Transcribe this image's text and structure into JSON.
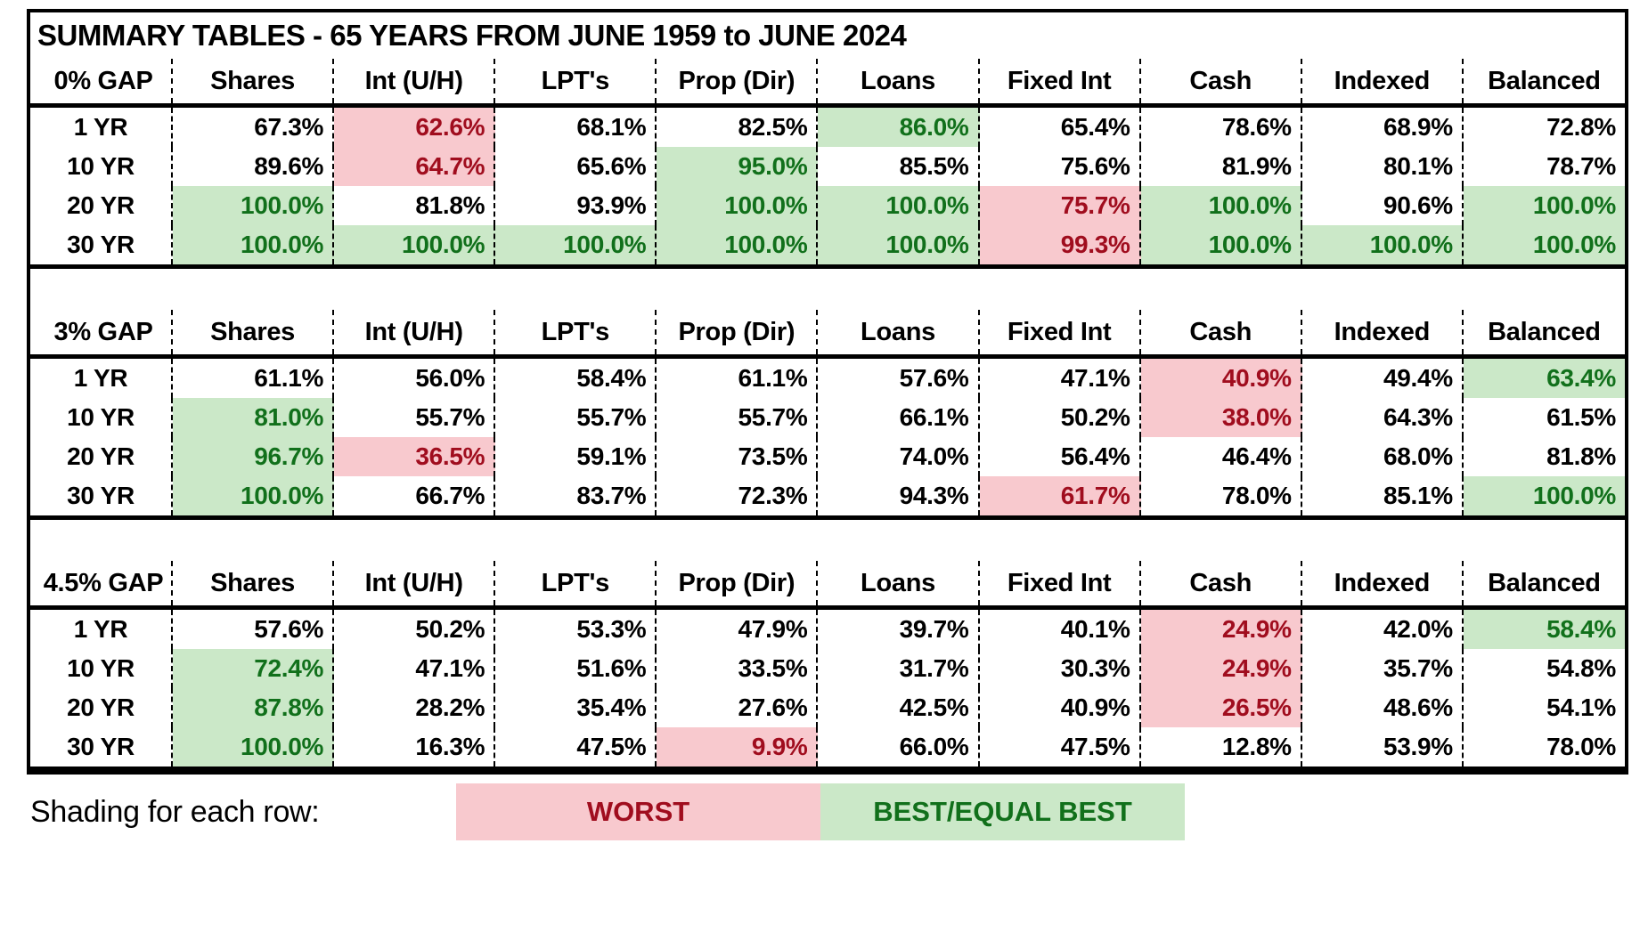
{
  "colors": {
    "worst_bg": "#F8C9CE",
    "worst_text": "#A00D1E",
    "best_bg": "#CBE8C8",
    "best_text": "#11701B"
  },
  "chart_data": {
    "type": "table",
    "title": "SUMMARY TABLES - 65 YEARS FROM JUNE 1959 to JUNE 2024",
    "shading_legend": {
      "label": "Shading for each row:",
      "worst": "WORST",
      "best": "BEST/EQUAL BEST"
    },
    "tables": [
      {
        "gap_label": "0% GAP",
        "columns": [
          "Shares",
          "Int (U/H)",
          "LPT's",
          "Prop (Dir)",
          "Loans",
          "Fixed Int",
          "Cash",
          "Indexed",
          "Balanced"
        ],
        "rows": [
          {
            "label": "1 YR",
            "values": [
              "67.3%",
              "62.6%",
              "68.1%",
              "82.5%",
              "86.0%",
              "65.4%",
              "78.6%",
              "68.9%",
              "72.8%"
            ],
            "shading": [
              "",
              "worst",
              "",
              "",
              "best",
              "",
              "",
              "",
              ""
            ]
          },
          {
            "label": "10 YR",
            "values": [
              "89.6%",
              "64.7%",
              "65.6%",
              "95.0%",
              "85.5%",
              "75.6%",
              "81.9%",
              "80.1%",
              "78.7%"
            ],
            "shading": [
              "",
              "worst",
              "",
              "best",
              "",
              "",
              "",
              "",
              ""
            ]
          },
          {
            "label": "20 YR",
            "values": [
              "100.0%",
              "81.8%",
              "93.9%",
              "100.0%",
              "100.0%",
              "75.7%",
              "100.0%",
              "90.6%",
              "100.0%"
            ],
            "shading": [
              "best",
              "",
              "",
              "best",
              "best",
              "worst",
              "best",
              "",
              "best"
            ]
          },
          {
            "label": "30 YR",
            "values": [
              "100.0%",
              "100.0%",
              "100.0%",
              "100.0%",
              "100.0%",
              "99.3%",
              "100.0%",
              "100.0%",
              "100.0%"
            ],
            "shading": [
              "best",
              "best",
              "best",
              "best",
              "best",
              "worst",
              "best",
              "best",
              "best"
            ]
          }
        ]
      },
      {
        "gap_label": "3% GAP",
        "columns": [
          "Shares",
          "Int (U/H)",
          "LPT's",
          "Prop (Dir)",
          "Loans",
          "Fixed Int",
          "Cash",
          "Indexed",
          "Balanced"
        ],
        "rows": [
          {
            "label": "1 YR",
            "values": [
              "61.1%",
              "56.0%",
              "58.4%",
              "61.1%",
              "57.6%",
              "47.1%",
              "40.9%",
              "49.4%",
              "63.4%"
            ],
            "shading": [
              "",
              "",
              "",
              "",
              "",
              "",
              "worst",
              "",
              "best"
            ]
          },
          {
            "label": "10 YR",
            "values": [
              "81.0%",
              "55.7%",
              "55.7%",
              "55.7%",
              "66.1%",
              "50.2%",
              "38.0%",
              "64.3%",
              "61.5%"
            ],
            "shading": [
              "best",
              "",
              "",
              "",
              "",
              "",
              "worst",
              "",
              ""
            ]
          },
          {
            "label": "20 YR",
            "values": [
              "96.7%",
              "36.5%",
              "59.1%",
              "73.5%",
              "74.0%",
              "56.4%",
              "46.4%",
              "68.0%",
              "81.8%"
            ],
            "shading": [
              "best",
              "worst",
              "",
              "",
              "",
              "",
              "",
              "",
              ""
            ]
          },
          {
            "label": "30 YR",
            "values": [
              "100.0%",
              "66.7%",
              "83.7%",
              "72.3%",
              "94.3%",
              "61.7%",
              "78.0%",
              "85.1%",
              "100.0%"
            ],
            "shading": [
              "best",
              "",
              "",
              "",
              "",
              "worst",
              "",
              "",
              "best"
            ]
          }
        ]
      },
      {
        "gap_label": "4.5% GAP",
        "columns": [
          "Shares",
          "Int (U/H)",
          "LPT's",
          "Prop (Dir)",
          "Loans",
          "Fixed Int",
          "Cash",
          "Indexed",
          "Balanced"
        ],
        "rows": [
          {
            "label": "1 YR",
            "values": [
              "57.6%",
              "50.2%",
              "53.3%",
              "47.9%",
              "39.7%",
              "40.1%",
              "24.9%",
              "42.0%",
              "58.4%"
            ],
            "shading": [
              "",
              "",
              "",
              "",
              "",
              "",
              "worst",
              "",
              "best"
            ]
          },
          {
            "label": "10 YR",
            "values": [
              "72.4%",
              "47.1%",
              "51.6%",
              "33.5%",
              "31.7%",
              "30.3%",
              "24.9%",
              "35.7%",
              "54.8%"
            ],
            "shading": [
              "best",
              "",
              "",
              "",
              "",
              "",
              "worst",
              "",
              ""
            ]
          },
          {
            "label": "20 YR",
            "values": [
              "87.8%",
              "28.2%",
              "35.4%",
              "27.6%",
              "42.5%",
              "40.9%",
              "26.5%",
              "48.6%",
              "54.1%"
            ],
            "shading": [
              "best",
              "",
              "",
              "",
              "",
              "",
              "worst",
              "",
              ""
            ]
          },
          {
            "label": "30 YR",
            "values": [
              "100.0%",
              "16.3%",
              "47.5%",
              "9.9%",
              "66.0%",
              "47.5%",
              "12.8%",
              "53.9%",
              "78.0%"
            ],
            "shading": [
              "best",
              "",
              "",
              "worst",
              "",
              "",
              "",
              "",
              ""
            ]
          }
        ]
      }
    ]
  }
}
